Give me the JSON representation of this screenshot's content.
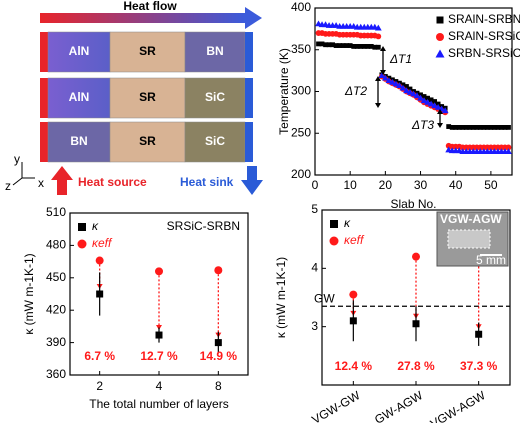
{
  "schematic": {
    "heat_flow": "Heat flow",
    "rows": [
      [
        "AlN",
        "SR",
        "BN"
      ],
      [
        "AlN",
        "SR",
        "SiC"
      ],
      [
        "BN",
        "SR",
        "SiC"
      ]
    ],
    "heat_source": "Heat source",
    "heat_sink": "Heat sink",
    "axes": [
      "y",
      "z",
      "x"
    ]
  },
  "chart_data": [
    {
      "type": "scatter",
      "xlabel": "Slab No.",
      "ylabel": "Temperature (K)",
      "x": [
        1,
        2,
        3,
        4,
        5,
        6,
        7,
        8,
        9,
        10,
        11,
        12,
        13,
        14,
        15,
        16,
        17,
        18,
        19,
        20,
        21,
        22,
        23,
        24,
        25,
        26,
        27,
        28,
        29,
        30,
        31,
        32,
        33,
        34,
        35,
        36,
        37,
        38,
        39,
        40,
        41,
        42,
        43,
        44,
        45,
        46,
        47,
        48,
        49,
        50,
        51,
        52,
        53,
        54,
        55
      ],
      "series": [
        {
          "name": "SRAlN-SRBN",
          "color": "#000000",
          "marker": "square",
          "values": [
            357,
            357,
            356,
            356,
            356,
            355,
            355,
            355,
            355,
            355,
            354,
            354,
            354,
            354,
            354,
            354,
            353,
            353,
            320,
            318,
            316,
            314,
            312,
            310,
            308,
            306,
            303,
            300,
            298,
            296,
            294,
            292,
            290,
            288,
            285,
            282,
            280,
            258,
            257,
            257,
            257,
            257,
            257,
            257,
            257,
            257,
            257,
            257,
            257,
            257,
            257,
            257,
            257,
            257,
            257
          ]
        },
        {
          "name": "SRAlN-SRSiC",
          "color": "#ff1a1a",
          "marker": "circle",
          "values": [
            370,
            370,
            369,
            369,
            369,
            369,
            368,
            368,
            368,
            368,
            368,
            368,
            367,
            367,
            367,
            367,
            367,
            366,
            318,
            315,
            312,
            310,
            308,
            306,
            303,
            300,
            298,
            296,
            293,
            290,
            287,
            285,
            283,
            281,
            279,
            277,
            275,
            235,
            234,
            234,
            234,
            233,
            233,
            233,
            233,
            233,
            233,
            233,
            233,
            233,
            233,
            233,
            233,
            233,
            233
          ]
        },
        {
          "name": "SRBN-SRSiC",
          "color": "#1a1aff",
          "marker": "triangle",
          "values": [
            381,
            380,
            380,
            379,
            379,
            379,
            378,
            378,
            378,
            378,
            378,
            377,
            377,
            377,
            377,
            377,
            377,
            376,
            319,
            316,
            313,
            311,
            309,
            307,
            304,
            301,
            299,
            297,
            295,
            292,
            289,
            287,
            285,
            283,
            281,
            279,
            277,
            230,
            229,
            229,
            229,
            228,
            228,
            228,
            228,
            228,
            228,
            228,
            228,
            228,
            228,
            228,
            228,
            228,
            228
          ]
        }
      ],
      "xlim": [
        0,
        56
      ],
      "xticks": [
        0,
        10,
        20,
        30,
        40,
        50
      ],
      "ylim": [
        200,
        400
      ],
      "yticks": [
        200,
        250,
        300,
        350,
        400
      ],
      "annotations": [
        "ΔT1",
        "ΔT2",
        "ΔT3"
      ]
    },
    {
      "type": "errorbar",
      "label": "SRSiC-SRBN",
      "xlabel": "The total number of layers",
      "ylabel": "κ (mW m-1K-1)",
      "categories": [
        "2",
        "4",
        "8"
      ],
      "series": [
        {
          "name": "κ",
          "color": "#000000",
          "marker": "square",
          "values": [
            435,
            397,
            390
          ],
          "errors": [
            20,
            7,
            10
          ]
        },
        {
          "name": "κeff",
          "color": "#ff1a1a",
          "marker": "circle",
          "values": [
            466,
            456,
            457
          ]
        }
      ],
      "ylim": [
        360,
        510
      ],
      "yticks": [
        360,
        390,
        420,
        450,
        480,
        510
      ],
      "annotations": [
        "6.7 %",
        "12.7 %",
        "14.9 %"
      ]
    },
    {
      "type": "errorbar",
      "xlabel": null,
      "ylabel": "κ (mW m-1K-1)",
      "categories": [
        "VGW-GW",
        "GW-AGW",
        "VGW-AGW"
      ],
      "series": [
        {
          "name": "κ",
          "color": "#000000",
          "marker": "square",
          "values": [
            3.1,
            3.05,
            2.87
          ],
          "errors": [
            0.35,
            0.3,
            0.2
          ]
        },
        {
          "name": "κeff",
          "color": "#ff1a1a",
          "marker": "circle",
          "values": [
            3.55,
            4.2,
            4.58
          ]
        }
      ],
      "reference_line": {
        "value": 3.35,
        "label": "GW"
      },
      "inset": {
        "title": "VGW-AGW",
        "scale": "5 mm"
      },
      "ylim": [
        2,
        5
      ],
      "yticks": [
        3,
        4,
        5
      ],
      "annotations": [
        "12.4 %",
        "27.8 %",
        "37.3 %"
      ]
    }
  ]
}
